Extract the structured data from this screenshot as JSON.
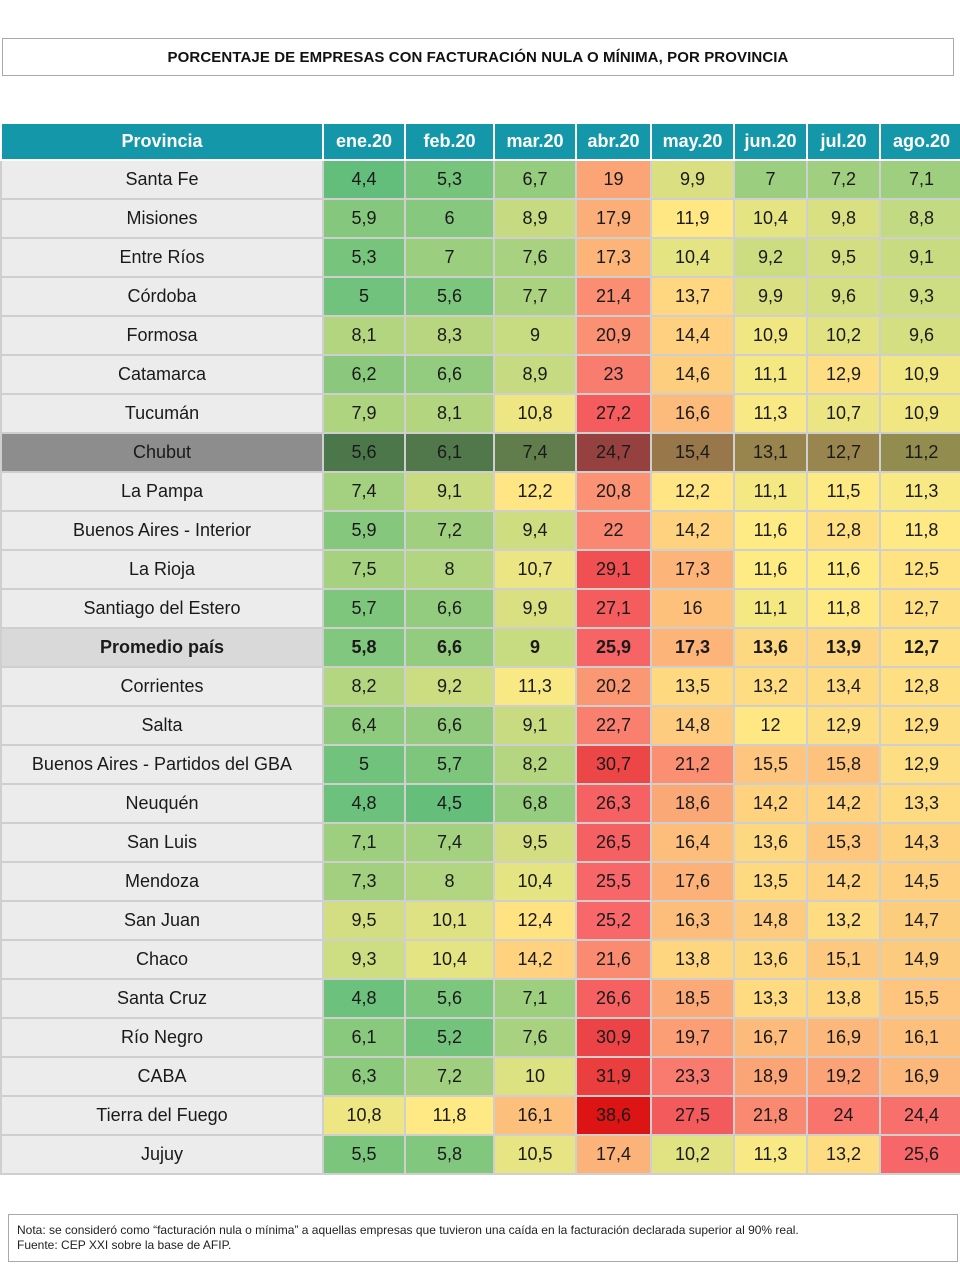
{
  "title": "PORCENTAJE DE EMPRESAS CON FACTURACIÓN NULA O MÍNIMA, POR PROVINCIA",
  "chart_data": {
    "type": "heatmap",
    "title": "PORCENTAJE DE EMPRESAS CON FACTURACIÓN NULA O MÍNIMA, POR PROVINCIA",
    "row_header": "Provincia",
    "columns": [
      "ene.20",
      "feb.20",
      "mar.20",
      "abr.20",
      "may.20",
      "jun.20",
      "jul.20",
      "ago.20"
    ],
    "rows": [
      {
        "name": "Santa Fe",
        "values": [
          "4,4",
          "5,3",
          "6,7",
          "19",
          "9,9",
          "7",
          "7,2",
          "7,1"
        ]
      },
      {
        "name": "Misiones",
        "values": [
          "5,9",
          "6",
          "8,9",
          "17,9",
          "11,9",
          "10,4",
          "9,8",
          "8,8"
        ]
      },
      {
        "name": "Entre Ríos",
        "values": [
          "5,3",
          "7",
          "7,6",
          "17,3",
          "10,4",
          "9,2",
          "9,5",
          "9,1"
        ]
      },
      {
        "name": "Córdoba",
        "values": [
          "5",
          "5,6",
          "7,7",
          "21,4",
          "13,7",
          "9,9",
          "9,6",
          "9,3"
        ]
      },
      {
        "name": "Formosa",
        "values": [
          "8,1",
          "8,3",
          "9",
          "20,9",
          "14,4",
          "10,9",
          "10,2",
          "9,6"
        ]
      },
      {
        "name": "Catamarca",
        "values": [
          "6,2",
          "6,6",
          "8,9",
          "23",
          "14,6",
          "11,1",
          "12,9",
          "10,9"
        ]
      },
      {
        "name": "Tucumán",
        "values": [
          "7,9",
          "8,1",
          "10,8",
          "27,2",
          "16,6",
          "11,3",
          "10,7",
          "10,9"
        ]
      },
      {
        "name": "Chubut",
        "values": [
          "5,6",
          "6,1",
          "7,4",
          "24,7",
          "15,4",
          "13,1",
          "12,7",
          "11,2"
        ],
        "highlight": true
      },
      {
        "name": "La Pampa",
        "values": [
          "7,4",
          "9,1",
          "12,2",
          "20,8",
          "12,2",
          "11,1",
          "11,5",
          "11,3"
        ]
      },
      {
        "name": "Buenos Aires - Interior",
        "values": [
          "5,9",
          "7,2",
          "9,4",
          "22",
          "14,2",
          "11,6",
          "12,8",
          "11,8"
        ]
      },
      {
        "name": "La Rioja",
        "values": [
          "7,5",
          "8",
          "10,7",
          "29,1",
          "17,3",
          "11,6",
          "11,6",
          "12,5"
        ]
      },
      {
        "name": "Santiago del Estero",
        "values": [
          "5,7",
          "6,6",
          "9,9",
          "27,1",
          "16",
          "11,1",
          "11,8",
          "12,7"
        ]
      },
      {
        "name": "Promedio país",
        "values": [
          "5,8",
          "6,6",
          "9",
          "25,9",
          "17,3",
          "13,6",
          "13,9",
          "12,7"
        ],
        "average": true
      },
      {
        "name": "Corrientes",
        "values": [
          "8,2",
          "9,2",
          "11,3",
          "20,2",
          "13,5",
          "13,2",
          "13,4",
          "12,8"
        ]
      },
      {
        "name": "Salta",
        "values": [
          "6,4",
          "6,6",
          "9,1",
          "22,7",
          "14,8",
          "12",
          "12,9",
          "12,9"
        ]
      },
      {
        "name": "Buenos Aires - Partidos del GBA",
        "values": [
          "5",
          "5,7",
          "8,2",
          "30,7",
          "21,2",
          "15,5",
          "15,8",
          "12,9"
        ]
      },
      {
        "name": "Neuquén",
        "values": [
          "4,8",
          "4,5",
          "6,8",
          "26,3",
          "18,6",
          "14,2",
          "14,2",
          "13,3"
        ]
      },
      {
        "name": "San Luis",
        "values": [
          "7,1",
          "7,4",
          "9,5",
          "26,5",
          "16,4",
          "13,6",
          "15,3",
          "14,3"
        ]
      },
      {
        "name": "Mendoza",
        "values": [
          "7,3",
          "8",
          "10,4",
          "25,5",
          "17,6",
          "13,5",
          "14,2",
          "14,5"
        ]
      },
      {
        "name": "San Juan",
        "values": [
          "9,5",
          "10,1",
          "12,4",
          "25,2",
          "16,3",
          "14,8",
          "13,2",
          "14,7"
        ]
      },
      {
        "name": "Chaco",
        "values": [
          "9,3",
          "10,4",
          "14,2",
          "21,6",
          "13,8",
          "13,6",
          "15,1",
          "14,9"
        ]
      },
      {
        "name": "Santa Cruz",
        "values": [
          "4,8",
          "5,6",
          "7,1",
          "26,6",
          "18,5",
          "13,3",
          "13,8",
          "15,5"
        ]
      },
      {
        "name": "Río Negro",
        "values": [
          "6,1",
          "5,2",
          "7,6",
          "30,9",
          "19,7",
          "16,7",
          "16,9",
          "16,1"
        ]
      },
      {
        "name": "CABA",
        "values": [
          "6,3",
          "7,2",
          "10",
          "31,9",
          "23,3",
          "18,9",
          "19,2",
          "16,9"
        ]
      },
      {
        "name": "Tierra del Fuego",
        "values": [
          "10,8",
          "11,8",
          "16,1",
          "38,6",
          "27,5",
          "21,8",
          "24",
          "24,4"
        ]
      },
      {
        "name": "Jujuy",
        "values": [
          "5,5",
          "5,8",
          "10,5",
          "17,4",
          "10,2",
          "11,3",
          "13,2",
          "25,6"
        ]
      }
    ],
    "color_scale": [
      "#63be7b",
      "#ffeb84",
      "#f8696b"
    ]
  },
  "note": {
    "line1": "Nota: se consideró como “facturación nula o mínima” a aquellas empresas que tuvieron una caída en la facturación declarada superior al 90% real.",
    "line2": "Fuente: CEP XXI sobre la base de AFIP."
  }
}
